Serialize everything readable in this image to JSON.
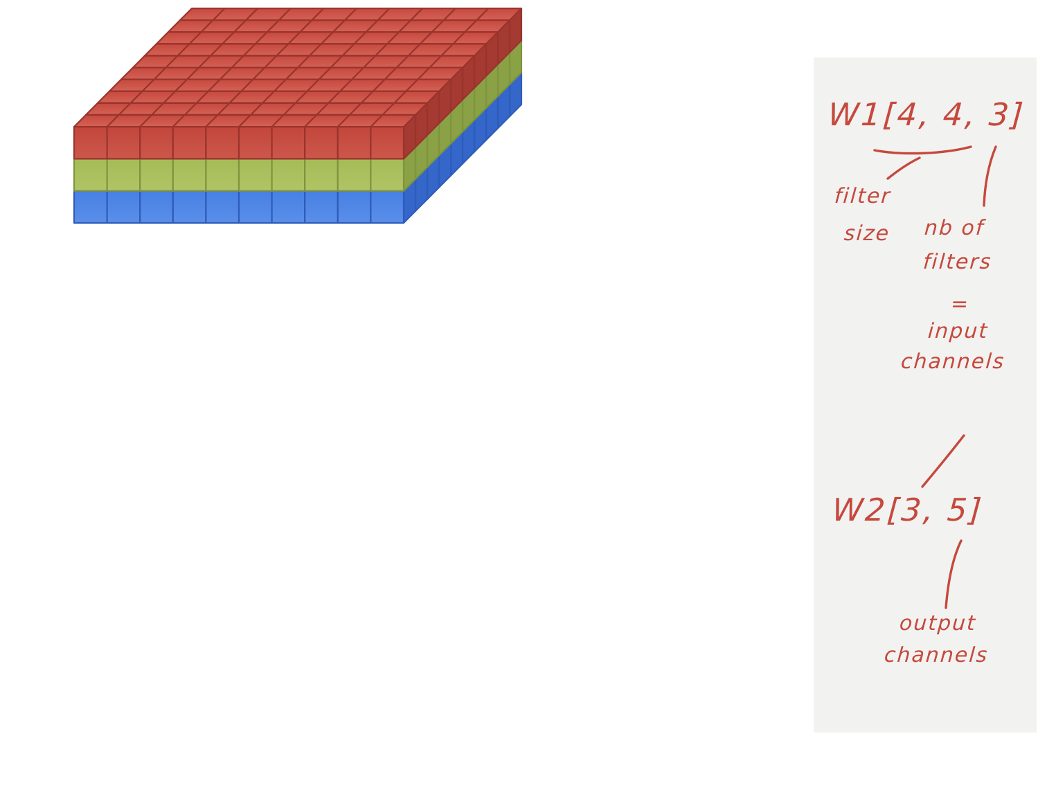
{
  "canvas": {
    "background": "#ffffff"
  },
  "figure": {
    "type": "3d-tensor-grid",
    "columns": 10,
    "rows": 10,
    "layers": 3,
    "layer_colors": [
      {
        "name": "blue-channel",
        "front_top": "#4780e4",
        "front_bottom": "#5a8fe9",
        "top_back": "#4a83e6",
        "top_front": "#6496ec",
        "right": "#3467c9",
        "edge": "#2e5cba"
      },
      {
        "name": "green-channel",
        "front_top": "#a5bb57",
        "front_bottom": "#b1c466",
        "top_back": "#a9be5b",
        "top_front": "#bccb74",
        "right": "#8aa145",
        "edge": "#7e943e"
      },
      {
        "name": "red-channel",
        "front_top": "#c2463b",
        "front_bottom": "#cd574b",
        "top_back": "#c6493e",
        "top_front": "#d46155",
        "right": "#a43a31",
        "edge": "#99342c"
      }
    ]
  },
  "panel": {
    "background": "#f2f2f1",
    "ink": "#c5493c",
    "w1_label": "W1[4, 4, 3]",
    "w2_label": "W2[3, 5]",
    "notes": {
      "filter": "filter",
      "size": "size",
      "nb_of": "nb of",
      "filters": "filters",
      "equals": "=",
      "input": "input",
      "input_channels": "channels",
      "output": "output",
      "output_channels": "channels"
    }
  }
}
